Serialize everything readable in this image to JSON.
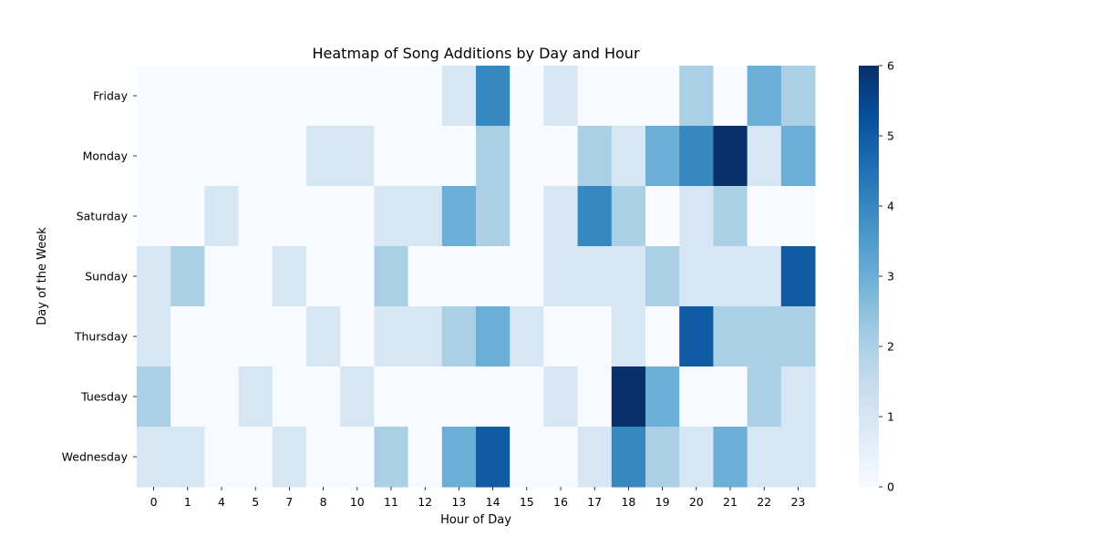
{
  "chart_data": {
    "type": "heatmap",
    "title": "Heatmap of Song Additions by Day and Hour",
    "xlabel": "Hour of Day",
    "ylabel": "Day of the Week",
    "x": [
      "0",
      "1",
      "4",
      "5",
      "7",
      "8",
      "10",
      "11",
      "12",
      "13",
      "14",
      "15",
      "16",
      "17",
      "18",
      "19",
      "20",
      "21",
      "22",
      "23"
    ],
    "y": [
      "Friday",
      "Monday",
      "Saturday",
      "Sunday",
      "Thursday",
      "Tuesday",
      "Wednesday"
    ],
    "values": [
      [
        0,
        0,
        0,
        0,
        0,
        0,
        0,
        0,
        0,
        1,
        4,
        0,
        1,
        0,
        0,
        0,
        2,
        0,
        3,
        2
      ],
      [
        0,
        0,
        0,
        0,
        0,
        1,
        1,
        0,
        0,
        0,
        2,
        0,
        0,
        2,
        1,
        3,
        4,
        6,
        1,
        3
      ],
      [
        0,
        0,
        1,
        0,
        0,
        0,
        0,
        1,
        1,
        3,
        2,
        0,
        1,
        4,
        2,
        0,
        1,
        2,
        0,
        0
      ],
      [
        1,
        2,
        0,
        0,
        1,
        0,
        0,
        2,
        0,
        0,
        0,
        0,
        1,
        1,
        1,
        2,
        1,
        1,
        1,
        5
      ],
      [
        1,
        0,
        0,
        0,
        0,
        1,
        0,
        1,
        1,
        2,
        3,
        1,
        0,
        0,
        1,
        0,
        5,
        2,
        2,
        2
      ],
      [
        2,
        0,
        0,
        1,
        0,
        0,
        1,
        0,
        0,
        0,
        0,
        0,
        1,
        0,
        6,
        3,
        0,
        0,
        2,
        1
      ],
      [
        1,
        1,
        0,
        0,
        1,
        0,
        0,
        2,
        0,
        3,
        5,
        0,
        0,
        1,
        4,
        2,
        1,
        3,
        1,
        1
      ]
    ],
    "colorbar": {
      "min": 0,
      "max": 6,
      "ticks": [
        "0",
        "1",
        "2",
        "3",
        "4",
        "5",
        "6"
      ]
    },
    "colormap": "Blues",
    "colors": [
      "#f7fbff",
      "#deebf7",
      "#c6dbef",
      "#9ecae1",
      "#6baed6",
      "#4292c6",
      "#2171b5",
      "#08519c",
      "#08306b"
    ],
    "grid": false
  }
}
